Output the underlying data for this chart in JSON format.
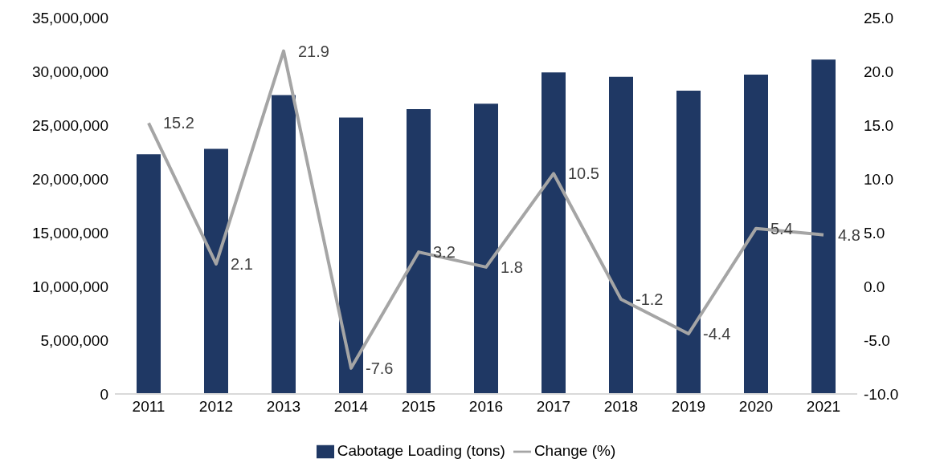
{
  "chart_data": {
    "type": "bar",
    "categories": [
      "2011",
      "2012",
      "2013",
      "2014",
      "2015",
      "2016",
      "2017",
      "2018",
      "2019",
      "2020",
      "2021"
    ],
    "series": [
      {
        "name": "Cabotage Loading (tons)",
        "color": "#1f3864",
        "values": [
          22300000,
          22800000,
          27800000,
          25700000,
          26500000,
          27000000,
          29900000,
          29500000,
          28200000,
          29700000,
          31100000
        ]
      },
      {
        "name": "Change (%)",
        "type": "line",
        "axis": "y2",
        "color": "#a5a5a5",
        "values": [
          15.2,
          2.1,
          21.9,
          -7.6,
          3.2,
          1.8,
          10.5,
          -1.2,
          -4.4,
          5.4,
          4.8
        ],
        "value_labels": [
          "15.2",
          "2.1",
          "21.9",
          "-7.6",
          "3.2",
          "1.8",
          "10.5",
          "-1.2",
          "-4.4",
          "5.4",
          "4.8"
        ]
      }
    ],
    "ylim": [
      0,
      35000000
    ],
    "yticks": [
      0,
      {
        "value": 5000000,
        "label": "5,000,000"
      },
      {
        "value": 10000000,
        "label": "10,000,000"
      },
      {
        "value": 15000000,
        "label": "15,000,000"
      },
      {
        "value": 20000000,
        "label": "20,000,000"
      },
      {
        "value": 25000000,
        "label": "25,000,000"
      },
      {
        "value": 30000000,
        "label": "30,000,000"
      },
      {
        "value": 35000000,
        "label": "35,000,000"
      }
    ],
    "y2lim": [
      -10,
      25
    ],
    "y2ticks": [
      {
        "value": -10,
        "label": "-10.0"
      },
      {
        "value": -5,
        "label": "-5.0"
      },
      {
        "value": 0,
        "label": "0.0"
      },
      {
        "value": 5,
        "label": "5.0"
      },
      {
        "value": 10,
        "label": "10.0"
      },
      {
        "value": 15,
        "label": "15.0"
      },
      {
        "value": 20,
        "label": "20.0"
      },
      {
        "value": 25,
        "label": "25.0"
      }
    ],
    "legend": "bottom",
    "marker": "none"
  }
}
